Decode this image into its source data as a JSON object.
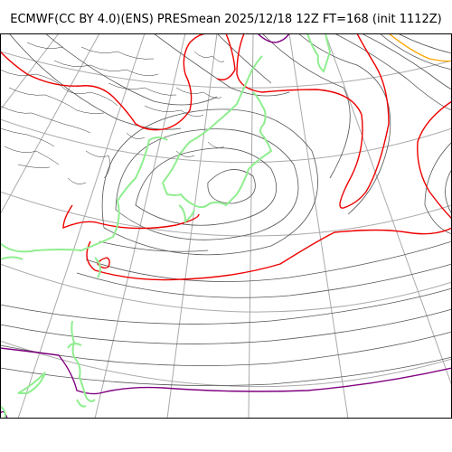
{
  "title": "ECMWF(CC BY 4.0)(ENS) PRESmean 2025/12/18 12Z FT=168 (init 1112Z)",
  "colors": {
    "coastline": "#90ee90",
    "isobar": "#555555",
    "isobar_1000": "#ee0000",
    "isobar_low": "#800080",
    "isobar_high": "#ffa500",
    "graticule": "#aaaaaa",
    "frame": "#000000",
    "background": "#ffffff"
  }
}
